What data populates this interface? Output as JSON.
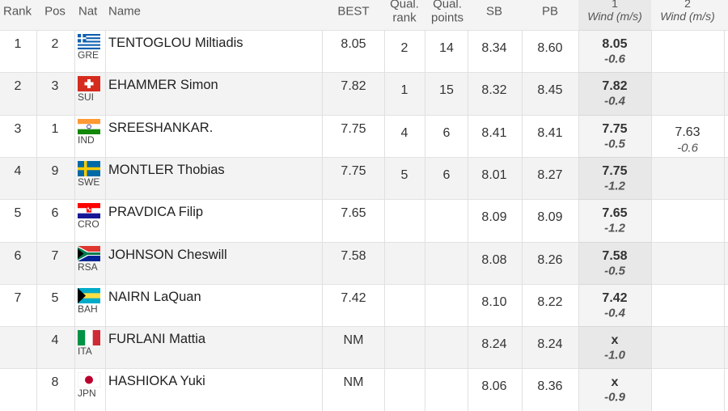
{
  "header": {
    "rank": "Rank",
    "pos": "Pos",
    "nat": "Nat",
    "name": "Name",
    "best": "BEST",
    "qual_rank": [
      "Qual.",
      "rank"
    ],
    "qual_points": [
      "Qual.",
      "points"
    ],
    "sb": "SB",
    "pb": "PB",
    "attempt1": [
      "1",
      "Wind (m/s)"
    ],
    "attempt2": [
      "2",
      "Wind (m/s)"
    ]
  },
  "rows": [
    {
      "rank": "1",
      "pos": "2",
      "nat": "GRE",
      "name": "TENTOGLOU Miltiadis",
      "best": "8.05",
      "qual_rank": "2",
      "qual_points": "14",
      "sb": "8.34",
      "pb": "8.60",
      "attempt1": {
        "mark": "8.05",
        "wind": "-0.6"
      }
    },
    {
      "rank": "2",
      "pos": "3",
      "nat": "SUI",
      "name": "EHAMMER Simon",
      "best": "7.82",
      "qual_rank": "1",
      "qual_points": "15",
      "sb": "8.32",
      "pb": "8.45",
      "attempt1": {
        "mark": "7.82",
        "wind": "-0.4"
      }
    },
    {
      "rank": "3",
      "pos": "1",
      "nat": "IND",
      "name": "SREESHANKAR.",
      "best": "7.75",
      "qual_rank": "4",
      "qual_points": "6",
      "sb": "8.41",
      "pb": "8.41",
      "attempt1": {
        "mark": "7.75",
        "wind": "-0.5"
      },
      "attempt2": {
        "mark": "7.63",
        "wind": "-0.6"
      }
    },
    {
      "rank": "4",
      "pos": "9",
      "nat": "SWE",
      "name": "MONTLER Thobias",
      "best": "7.75",
      "qual_rank": "5",
      "qual_points": "6",
      "sb": "8.01",
      "pb": "8.27",
      "attempt1": {
        "mark": "7.75",
        "wind": "-1.2"
      }
    },
    {
      "rank": "5",
      "pos": "6",
      "nat": "CRO",
      "name": "PRAVDICA Filip",
      "best": "7.65",
      "sb": "8.09",
      "pb": "8.09",
      "attempt1": {
        "mark": "7.65",
        "wind": "-1.2"
      }
    },
    {
      "rank": "6",
      "pos": "7",
      "nat": "RSA",
      "name": "JOHNSON Cheswill",
      "best": "7.58",
      "sb": "8.08",
      "pb": "8.26",
      "attempt1": {
        "mark": "7.58",
        "wind": "-0.5"
      }
    },
    {
      "rank": "7",
      "pos": "5",
      "nat": "BAH",
      "name": "NAIRN LaQuan",
      "best": "7.42",
      "sb": "8.10",
      "pb": "8.22",
      "attempt1": {
        "mark": "7.42",
        "wind": "-0.4"
      }
    },
    {
      "pos": "4",
      "nat": "ITA",
      "name": "FURLANI Mattia",
      "best": "NM",
      "sb": "8.24",
      "pb": "8.24",
      "attempt1": {
        "mark": "x",
        "wind": "-1.0"
      }
    },
    {
      "pos": "8",
      "nat": "JPN",
      "name": "HASHIOKA Yuki",
      "best": "NM",
      "sb": "8.06",
      "pb": "8.36",
      "attempt1": {
        "mark": "x",
        "wind": "-0.9"
      }
    }
  ]
}
